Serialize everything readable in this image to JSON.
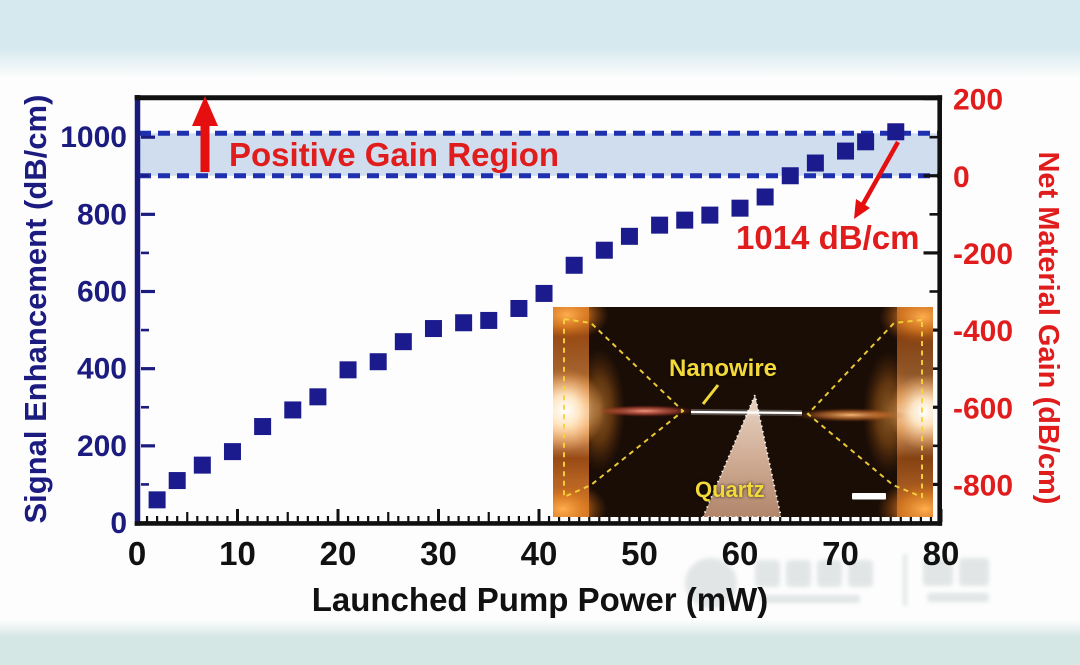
{
  "page": {
    "top_band_color": "#d6e9ee",
    "bottom_band_color": "#d5e7e4",
    "plot_background": "#fdfdfd"
  },
  "chart_data": {
    "type": "scatter",
    "title": "",
    "xlabel": "Launched Pump Power (mW)",
    "ylabel_left": "Signal Enhancement (dB/cm)",
    "ylabel_right": "Net Material Gain (dB/cm)",
    "xlim": [
      0,
      80
    ],
    "ylim_left": [
      0,
      1108
    ],
    "ylim_right": [
      -908,
      200
    ],
    "right_axis_offset_from_left": -900,
    "x_ticks": [
      0,
      10,
      20,
      30,
      40,
      50,
      60,
      70,
      80
    ],
    "x_minor_step": 1,
    "left_ticks": [
      0,
      200,
      400,
      600,
      800,
      1000
    ],
    "left_minor_step": 100,
    "right_ticks": [
      200,
      0,
      -200,
      -400,
      -600,
      -800
    ],
    "right_minor_step": 100,
    "grid": false,
    "legend": false,
    "axis_colors": {
      "left": "#1b1b80",
      "right": "#e01c1c",
      "x": "#111111",
      "frame": "#111111"
    },
    "series": [
      {
        "name": "Signal enhancement vs launched pump power",
        "marker": "square",
        "color": "#1b1b8e",
        "points": [
          [
            2,
            60
          ],
          [
            4,
            110
          ],
          [
            6.5,
            150
          ],
          [
            9.5,
            185
          ],
          [
            12.5,
            250
          ],
          [
            15.5,
            293
          ],
          [
            18,
            327
          ],
          [
            21,
            397
          ],
          [
            24,
            418
          ],
          [
            26.5,
            470
          ],
          [
            29.5,
            504
          ],
          [
            32.5,
            519
          ],
          [
            35,
            525
          ],
          [
            38,
            556
          ],
          [
            40.5,
            595
          ],
          [
            43.5,
            668
          ],
          [
            46.5,
            707
          ],
          [
            49,
            743
          ],
          [
            52,
            772
          ],
          [
            54.5,
            785
          ],
          [
            57,
            798
          ],
          [
            60,
            816
          ],
          [
            62.5,
            845
          ],
          [
            65,
            900
          ],
          [
            67.5,
            933
          ],
          [
            70.5,
            964
          ],
          [
            72.5,
            988
          ],
          [
            75.5,
            1014
          ]
        ]
      }
    ],
    "annotations": {
      "band": {
        "label": "Positive Gain Region",
        "label_color": "#e01c1c",
        "from": 900,
        "to": 1010,
        "fill": "#cfddee",
        "line_color": "#1e30b0"
      },
      "max_point": {
        "text": "1014 dB/cm",
        "color": "#e01c1c",
        "x": 75.5,
        "y": 1014
      },
      "up_arrow_color": "#e60f0f"
    }
  },
  "inset": {
    "nanowire_label": "Nanowire",
    "quartz_label": "Quartz",
    "label_color": "#f2d838",
    "scale_bar": "unlabeled white scale bar"
  }
}
